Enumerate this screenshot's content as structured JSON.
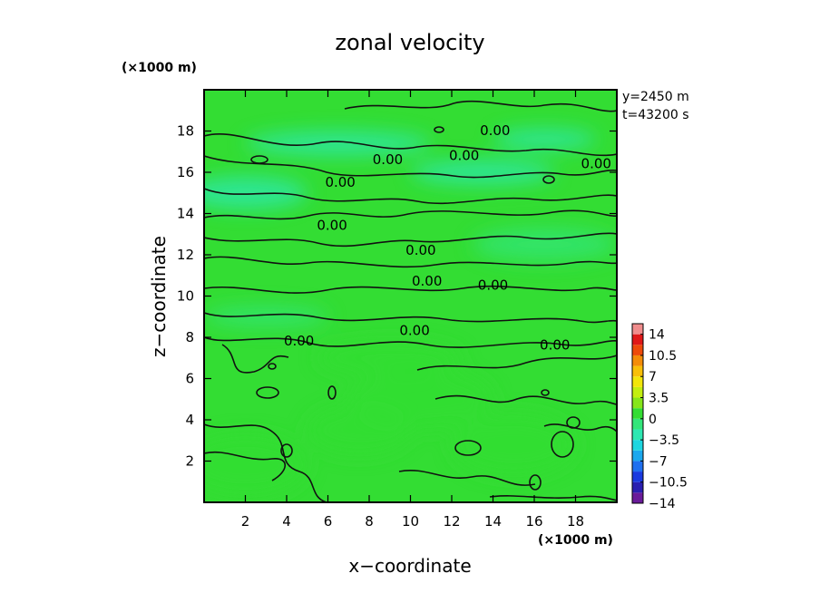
{
  "chart_data": {
    "type": "heatmap",
    "title": "zonal velocity",
    "xlabel": "x−coordinate",
    "ylabel": "z−coordinate",
    "x_unit": "(×1000 m)",
    "y_unit": "(×1000 m)",
    "info": [
      "y=2450 m",
      "t=43200 s"
    ],
    "xlim": [
      0,
      20
    ],
    "ylim": [
      0,
      20
    ],
    "x_ticks": [
      2,
      4,
      6,
      8,
      10,
      12,
      14,
      16,
      18
    ],
    "y_ticks": [
      2,
      4,
      6,
      8,
      10,
      12,
      14,
      16,
      18
    ],
    "colorbar": {
      "levels": [
        -14,
        -12.25,
        -10.5,
        -8.75,
        -7,
        -5.25,
        -3.5,
        -1.75,
        0,
        1.75,
        3.5,
        5.25,
        7,
        8.75,
        10.5,
        12.25,
        14
      ],
      "colors": [
        "#6a1b9a",
        "#2a1fb0",
        "#1a3ae0",
        "#1f70f0",
        "#1ba8ee",
        "#1dd6e0",
        "#2de8b2",
        "#33e67a",
        "#33dd33",
        "#86e61a",
        "#c3ee10",
        "#f2e60a",
        "#f8bf08",
        "#f48c08",
        "#ee4a0a",
        "#e01818",
        "#f08c8c"
      ],
      "tick_labels": [
        "14",
        "10.5",
        "7",
        "3.5",
        "0",
        "−3.5",
        "−7",
        "−10.5",
        "−14"
      ]
    },
    "contour_labels": [
      {
        "text": "0.00",
        "x": 14.1,
        "z": 17.8
      },
      {
        "text": "0.00",
        "x": 8.9,
        "z": 16.4
      },
      {
        "text": "0.00",
        "x": 12.6,
        "z": 16.6
      },
      {
        "text": "0.00",
        "x": 19.0,
        "z": 16.2
      },
      {
        "text": "0.00",
        "x": 6.6,
        "z": 15.3
      },
      {
        "text": "0.00",
        "x": 6.2,
        "z": 13.2
      },
      {
        "text": "0.00",
        "x": 10.5,
        "z": 12.0
      },
      {
        "text": "0.00",
        "x": 10.8,
        "z": 10.5
      },
      {
        "text": "0.00",
        "x": 14.0,
        "z": 10.3
      },
      {
        "text": "0.00",
        "x": 4.6,
        "z": 7.6
      },
      {
        "text": "0.00",
        "x": 10.2,
        "z": 8.1
      },
      {
        "text": "0.00",
        "x": 17.0,
        "z": 7.4
      }
    ],
    "field_blobs": [
      {
        "x": 6.5,
        "z": 17.4,
        "rx": 4.5,
        "rz": 0.6,
        "value": -2.4
      },
      {
        "x": 2.0,
        "z": 15.0,
        "rx": 3.0,
        "rz": 0.8,
        "value": -1.8
      },
      {
        "x": 13.5,
        "z": 16.0,
        "rx": 3.5,
        "rz": 0.6,
        "value": -2.4
      },
      {
        "x": 16.5,
        "z": 12.5,
        "rx": 3.5,
        "rz": 0.8,
        "value": -1.6
      },
      {
        "x": 3.0,
        "z": 9.0,
        "rx": 3.0,
        "rz": 0.5,
        "value": -1.0
      },
      {
        "x": 16.5,
        "z": 17.6,
        "rx": 2.5,
        "rz": 0.5,
        "value": -2.0
      },
      {
        "x": 10.5,
        "z": 5.0,
        "rx": 3.5,
        "rz": 1.5,
        "value": 1.4
      },
      {
        "x": 7.5,
        "z": 3.5,
        "rx": 2.5,
        "rz": 1.2,
        "value": 1.6
      },
      {
        "x": 2.0,
        "z": 1.8,
        "rx": 3.0,
        "rz": 1.5,
        "value": 0.9
      },
      {
        "x": 15.0,
        "z": 2.8,
        "rx": 3.0,
        "rz": 1.5,
        "value": 0.6
      },
      {
        "x": 9.0,
        "z": 7.0,
        "rx": 3.5,
        "rz": 0.8,
        "value": 0.8
      }
    ]
  }
}
